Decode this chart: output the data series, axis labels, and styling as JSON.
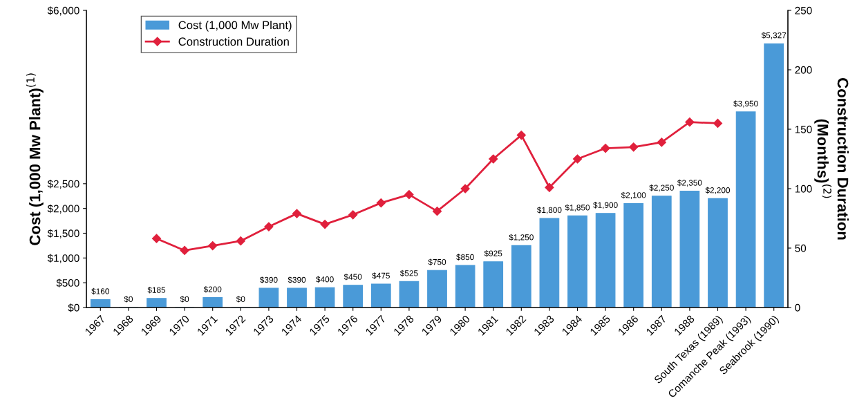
{
  "chart_data": {
    "type": "bar",
    "categories": [
      "1967",
      "1968",
      "1969",
      "1970",
      "1971",
      "1972",
      "1973",
      "1974",
      "1975",
      "1976",
      "1977",
      "1978",
      "1979",
      "1980",
      "1981",
      "1982",
      "1983",
      "1984",
      "1985",
      "1986",
      "1987",
      "1988",
      "South Texas (1989)",
      "Comanche Peak (1993)",
      "Seabrook (1990)"
    ],
    "ylabel": "Cost (1,000 Mw Plant)$^{(1)}$",
    "y2label": "Construction Duration\n(Months)$^{(2)}$",
    "series": [
      {
        "name": "Cost (1,000 Mw Plant)",
        "color": "#4a9ad8",
        "values": [
          160,
          0,
          185,
          0,
          200,
          0,
          390,
          390,
          400,
          450,
          475,
          525,
          750,
          850,
          925,
          1250,
          1800,
          1850,
          1900,
          2100,
          2250,
          2350,
          2200,
          3950,
          5327
        ],
        "value_labels": [
          "$160",
          "$0",
          "$185",
          "$0",
          "$200",
          "$0",
          "$390",
          "$390",
          "$400",
          "$450",
          "$475",
          "$525",
          "$750",
          "$850",
          "$925",
          "$1,250",
          "$1,800",
          "$1,850",
          "$1,900",
          "$2,100",
          "$2,250",
          "$2,350",
          "$2,200",
          "$3,950",
          "$5,327"
        ]
      },
      {
        "name": "Construction Duration",
        "type": "line",
        "axis": "y2",
        "color": "#e0203c",
        "marker": "diamond",
        "values": [
          null,
          null,
          58,
          48,
          52,
          56,
          68,
          79,
          70,
          78,
          88,
          95,
          81,
          100,
          125,
          145,
          101,
          125,
          134,
          135,
          139,
          156,
          155,
          null,
          null
        ]
      }
    ],
    "ylim": [
      0,
      6000
    ],
    "yticks": [
      {
        "value": 0,
        "label": "$0"
      },
      {
        "value": 500,
        "label": "$500"
      },
      {
        "value": 1000,
        "label": "$1,000"
      },
      {
        "value": 1500,
        "label": "$1,500"
      },
      {
        "value": 2000,
        "label": "$2,000"
      },
      {
        "value": 2500,
        "label": "$2,500"
      },
      {
        "value": 6000,
        "label": "$6,000"
      }
    ],
    "y2lim": [
      0,
      250
    ],
    "y2ticks": [
      0,
      50,
      100,
      150,
      200,
      250
    ],
    "legend": "top left",
    "grid": false
  }
}
